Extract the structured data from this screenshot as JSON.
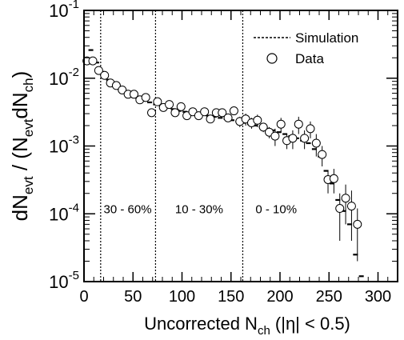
{
  "chart_data": {
    "type": "scatter",
    "title": "",
    "xlabel": {
      "main": "Uncorrected N",
      "sub": "ch",
      "tail": " (|η| < 0.5)"
    },
    "ylabel": {
      "a": "dN",
      "a_sub": "evt",
      "b": " / (N",
      "b_sub": "evt",
      "c": "dN",
      "c_sub": "ch",
      "d": ")"
    },
    "xlim": [
      0,
      320
    ],
    "ylim": [
      1e-05,
      0.1
    ],
    "yscale": "log",
    "x_ticks": [
      0,
      50,
      100,
      150,
      200,
      250,
      300
    ],
    "y_ticks": [
      {
        "value": 1e-05,
        "base": "10",
        "exp": "-5"
      },
      {
        "value": 0.0001,
        "base": "10",
        "exp": "-4"
      },
      {
        "value": 0.001,
        "base": "10",
        "exp": "-3"
      },
      {
        "value": 0.01,
        "base": "10",
        "exp": "-2"
      },
      {
        "value": 0.1,
        "base": "10",
        "exp": "-1"
      }
    ],
    "grid": false,
    "legend_position": "top-right",
    "legend": [
      {
        "label": "Simulation",
        "style": "dotted-line"
      },
      {
        "label": "Data",
        "style": "open-circle"
      }
    ],
    "centrality_boundaries": [
      17,
      73,
      162
    ],
    "centrality_labels": [
      {
        "text": "30 - 60%",
        "x": 20,
        "y": 0.00012
      },
      {
        "text": "10 - 30%",
        "x": 93,
        "y": 0.00012
      },
      {
        "text": "0 - 10%",
        "x": 175,
        "y": 0.00012
      }
    ],
    "series": [
      {
        "name": "Simulation",
        "style": "short horizontal dashes",
        "points": [
          [
            7,
            0.026
          ],
          [
            13,
            0.017
          ],
          [
            19,
            0.0124
          ],
          [
            25,
            0.0095
          ],
          [
            31,
            0.0078
          ],
          [
            37,
            0.0067
          ],
          [
            43,
            0.006
          ],
          [
            49,
            0.0055
          ],
          [
            55,
            0.0051
          ],
          [
            61,
            0.0047
          ],
          [
            67,
            0.0044
          ],
          [
            73,
            0.0041
          ],
          [
            79,
            0.0039
          ],
          [
            85,
            0.0037
          ],
          [
            91,
            0.0035
          ],
          [
            97,
            0.0033
          ],
          [
            103,
            0.0032
          ],
          [
            109,
            0.0031
          ],
          [
            115,
            0.003
          ],
          [
            121,
            0.0029
          ],
          [
            127,
            0.0028
          ],
          [
            133,
            0.0027
          ],
          [
            139,
            0.0026
          ],
          [
            145,
            0.0025
          ],
          [
            151,
            0.0024
          ],
          [
            157,
            0.0023
          ],
          [
            163,
            0.0022
          ],
          [
            169,
            0.0021
          ],
          [
            175,
            0.002
          ],
          [
            181,
            0.0019
          ],
          [
            187,
            0.0018
          ],
          [
            193,
            0.0017
          ],
          [
            199,
            0.0016
          ],
          [
            205,
            0.0015
          ],
          [
            211,
            0.0014
          ],
          [
            217,
            0.0013
          ],
          [
            223,
            0.0012
          ],
          [
            229,
            0.0011
          ],
          [
            235,
            0.0009
          ],
          [
            241,
            0.0007
          ],
          [
            247,
            0.00043
          ],
          [
            253,
            0.00028
          ],
          [
            259,
            0.00016
          ],
          [
            265,
            0.00011
          ],
          [
            271,
            7e-05
          ],
          [
            277,
            2.5e-05
          ],
          [
            283,
            1.2e-05
          ]
        ]
      },
      {
        "name": "Data",
        "style": "open circles with error bars",
        "points": [
          [
            3,
            0.018,
            0,
            0
          ],
          [
            9,
            0.018,
            0,
            0
          ],
          [
            15,
            0.013,
            0,
            0
          ],
          [
            21,
            0.011,
            0,
            0
          ],
          [
            27,
            0.0085,
            0,
            0
          ],
          [
            33,
            0.0078,
            0,
            0
          ],
          [
            39,
            0.0067,
            0,
            0
          ],
          [
            45,
            0.0058,
            0,
            0
          ],
          [
            51,
            0.0058,
            0,
            0
          ],
          [
            57,
            0.0048,
            0,
            0
          ],
          [
            63,
            0.0052,
            0,
            0
          ],
          [
            69,
            0.0031,
            0,
            0
          ],
          [
            75,
            0.0045,
            0,
            0
          ],
          [
            81,
            0.0037,
            0,
            0
          ],
          [
            87,
            0.0041,
            0,
            0
          ],
          [
            93,
            0.0031,
            0,
            0
          ],
          [
            99,
            0.0038,
            0,
            0
          ],
          [
            105,
            0.0028,
            0,
            0
          ],
          [
            111,
            0.0032,
            0,
            0
          ],
          [
            117,
            0.0028,
            0,
            0
          ],
          [
            123,
            0.0032,
            0,
            0
          ],
          [
            129,
            0.0025,
            0,
            0
          ],
          [
            135,
            0.0031,
            0,
            0
          ],
          [
            141,
            0.0031,
            0,
            0
          ],
          [
            147,
            0.0026,
            0,
            0
          ],
          [
            153,
            0.0033,
            0,
            0
          ],
          [
            159,
            0.0023,
            0.0004,
            0.0004
          ],
          [
            165,
            0.0025,
            0.0005,
            0.0005
          ],
          [
            171,
            0.0022,
            0.0004,
            0.0004
          ],
          [
            177,
            0.0024,
            0.0005,
            0.0005
          ],
          [
            183,
            0.0019,
            0.0003,
            0.0003
          ],
          [
            189,
            0.0016,
            0.0003,
            0.0003
          ],
          [
            195,
            0.0014,
            0.0004,
            0.0004
          ],
          [
            201,
            0.0021,
            0.0005,
            0.0005
          ],
          [
            207,
            0.0012,
            0.0003,
            0.0003
          ],
          [
            213,
            0.0013,
            0.0004,
            0.0004
          ],
          [
            219,
            0.0021,
            0.0006,
            0.0006
          ],
          [
            225,
            0.0013,
            0.0004,
            0.0004
          ],
          [
            231,
            0.0018,
            0.0005,
            0.0005
          ],
          [
            237,
            0.0011,
            0.0004,
            0.0004
          ],
          [
            243,
            0.00075,
            0.00025,
            0.00025
          ],
          [
            249,
            0.00032,
            0.00012,
            0.00012
          ],
          [
            255,
            0.00033,
            0.00013,
            0.00013
          ],
          [
            261,
            0.00012,
            8e-05,
            8e-05
          ],
          [
            267,
            0.00017,
            0.0001,
            0.0001
          ],
          [
            273,
            0.00013,
            9e-05,
            9e-05
          ],
          [
            279,
            7e-05,
            5e-05,
            5e-05
          ]
        ]
      }
    ]
  }
}
